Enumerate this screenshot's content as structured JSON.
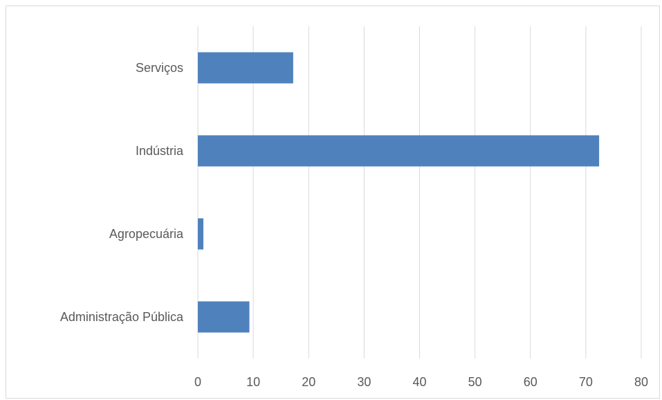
{
  "chart_data": {
    "type": "bar",
    "orientation": "horizontal",
    "categories": [
      "Serviços",
      "Indústria",
      "Agropecuária",
      "Administração Pública"
    ],
    "values": [
      17.2,
      72.4,
      1.0,
      9.3
    ],
    "xlim": [
      0,
      80
    ],
    "xticks": [
      "0",
      "10",
      "20",
      "30",
      "40",
      "50",
      "60",
      "70",
      "80"
    ],
    "grid": true,
    "legend": "none",
    "bar_color": "#4f81bd",
    "grid_color": "#d9d9d9",
    "text_color": "#595959"
  }
}
